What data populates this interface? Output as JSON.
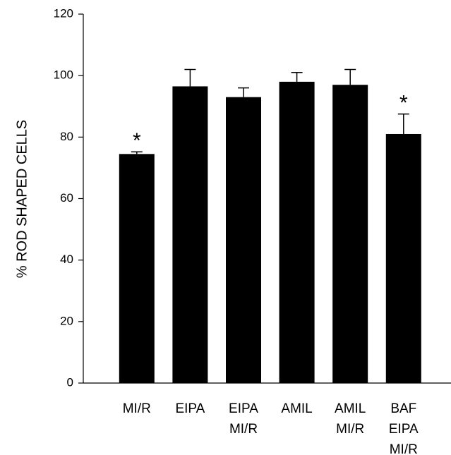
{
  "chart_data": {
    "type": "bar",
    "y_label": "% ROD SHAPED CELLS",
    "categories": [
      [
        "MI/R"
      ],
      [
        "EIPA"
      ],
      [
        "EIPA",
        "MI/R"
      ],
      [
        "AMIL"
      ],
      [
        "AMIL",
        "MI/R"
      ],
      [
        "BAF",
        "EIPA",
        "MI/R"
      ]
    ],
    "values": [
      74.5,
      96.5,
      93,
      98,
      97,
      81
    ],
    "errors": [
      0.7,
      5.5,
      3,
      3,
      5,
      6.5
    ],
    "color": "#000000",
    "ylim": [
      0,
      120
    ],
    "yticks": [
      0,
      20,
      40,
      60,
      80,
      100,
      120
    ],
    "annotations": [
      {
        "text": "*",
        "category": 0
      },
      {
        "text": "*",
        "category": 5
      }
    ]
  }
}
